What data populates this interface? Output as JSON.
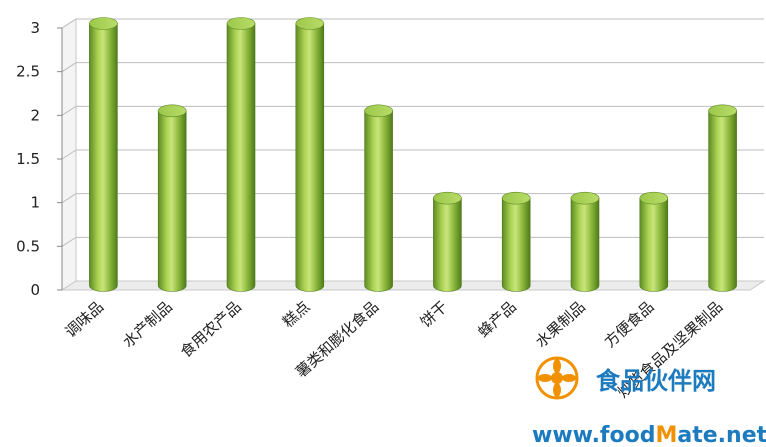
{
  "chart_data": {
    "type": "bar",
    "style": "3d-cylinder",
    "categories": [
      "调味品",
      "水产制品",
      "食用农产品",
      "糕点",
      "薯类和膨化食品",
      "饼干",
      "蜂产品",
      "水果制品",
      "方便食品",
      "炒货食品及坚果制品"
    ],
    "values": [
      3,
      2,
      3,
      3,
      2,
      1,
      1,
      1,
      1,
      2
    ],
    "yticks": [
      "0",
      "0.5",
      "1",
      "1.5",
      "2",
      "2.5",
      "3"
    ],
    "ylim": [
      0,
      3
    ],
    "grid": true,
    "bar_color": "#8ab83c",
    "bar_highlight": "#c9e57a",
    "bar_shadow": "#4f7a1c"
  },
  "watermark": {
    "cn_text": "食品伙伴网",
    "url_prefix": "www.food",
    "url_m": "M",
    "url_suffix": "ate.net",
    "logo_name": "foodmate-flower-logo"
  }
}
